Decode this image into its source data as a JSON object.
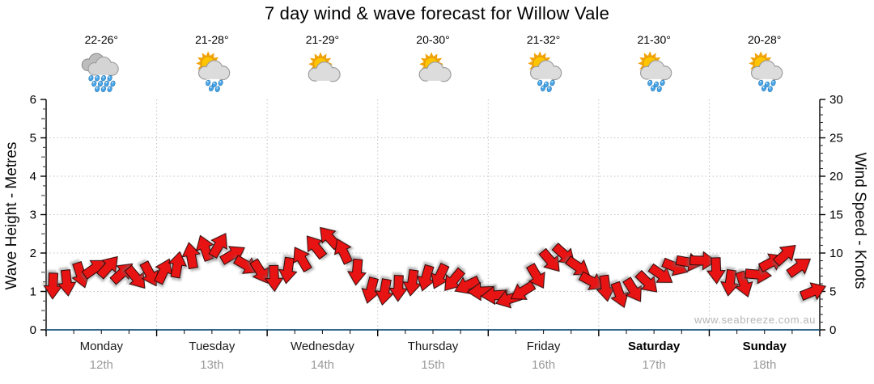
{
  "title": "7 day wind & wave forecast for Willow Vale",
  "watermark": "www.seabreeze.com.au",
  "left_axis": {
    "title": "Wave Height - Metres",
    "min": 0,
    "max": 6,
    "major_step": 1,
    "minor_step": 0.25
  },
  "right_axis": {
    "title": "Wind Speed - Knots",
    "min": 0,
    "max": 30,
    "major_step": 5,
    "minor_step": 1
  },
  "days": [
    {
      "name": "Monday",
      "date": "12th",
      "temp": "22-26°",
      "icon": "rain",
      "bold": false
    },
    {
      "name": "Tuesday",
      "date": "13th",
      "temp": "21-28°",
      "icon": "sun-cloud-rain",
      "bold": false
    },
    {
      "name": "Wednesday",
      "date": "14th",
      "temp": "21-29°",
      "icon": "sun-cloud",
      "bold": false
    },
    {
      "name": "Thursday",
      "date": "15th",
      "temp": "20-30°",
      "icon": "sun-cloud",
      "bold": false
    },
    {
      "name": "Friday",
      "date": "16th",
      "temp": "21-32°",
      "icon": "sun-cloud-rain",
      "bold": false
    },
    {
      "name": "Saturday",
      "date": "17th",
      "temp": "21-30°",
      "icon": "sun-cloud-rain",
      "bold": true
    },
    {
      "name": "Sunday",
      "date": "18th",
      "temp": "20-28°",
      "icon": "sun-cloud-rain",
      "bold": true
    }
  ],
  "chart_data": {
    "type": "line",
    "title": "7 day wind & wave forecast for Willow Vale",
    "x_categories": [
      "Monday 12th",
      "Tuesday 13th",
      "Wednesday 14th",
      "Thursday 15th",
      "Friday 16th",
      "Saturday 17th",
      "Sunday 18th"
    ],
    "step_hours": 3,
    "grid": true,
    "y_left": {
      "label": "Wave Height - Metres",
      "range": [
        0,
        6
      ]
    },
    "y_right": {
      "label": "Wind Speed - Knots",
      "range": [
        0,
        30
      ]
    },
    "series": [
      {
        "name": "Wind Speed",
        "unit": "knots",
        "style": "red-direction-arrows",
        "values": [
          5.8,
          6.2,
          7.2,
          8.0,
          8.2,
          7.4,
          6.8,
          7.3,
          7.6,
          8.4,
          9.6,
          10.6,
          11.0,
          9.8,
          8.4,
          7.6,
          6.8,
          7.8,
          9.2,
          10.8,
          12.0,
          10.2,
          7.6,
          5.2,
          5.0,
          5.5,
          6.2,
          6.8,
          7.0,
          6.5,
          5.8,
          5.0,
          4.5,
          4.0,
          5.0,
          7.0,
          9.0,
          9.8,
          8.2,
          6.3,
          5.5,
          4.6,
          5.2,
          6.2,
          7.2,
          8.2,
          8.8,
          9.0,
          7.8,
          6.2,
          6.0,
          7.2,
          8.8,
          9.8,
          8.2,
          5.0
        ],
        "directions_deg": [
          182,
          174,
          162,
          55,
          42,
          48,
          140,
          152,
          25,
          10,
          350,
          340,
          30,
          60,
          120,
          148,
          178,
          188,
          330,
          322,
          318,
          335,
          185,
          195,
          190,
          182,
          188,
          196,
          205,
          220,
          245,
          268,
          266,
          252,
          238,
          150,
          140,
          132,
          125,
          118,
          172,
          160,
          148,
          135,
          125,
          112,
          100,
          92,
          178,
          188,
          162,
          95,
          62,
          48,
          55,
          68
        ]
      },
      {
        "name": "Wave Height",
        "unit": "metres",
        "style": "blue-line",
        "constant_value": 0
      }
    ]
  },
  "colors": {
    "arrow_fill": "#e81313",
    "arrow_stroke": "#2a0a0a",
    "grid": "#c3c3c3",
    "axis": "#000000",
    "wave_line": "#33688c",
    "date_text": "#9a9a9a",
    "watermark_text": "#b5b5b5"
  }
}
